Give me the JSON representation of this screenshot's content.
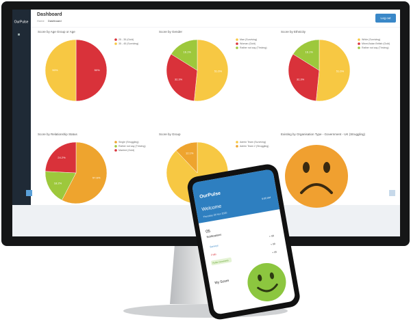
{
  "app": {
    "logo": "OurPulse",
    "title": "Dashboard",
    "breadcrumb": [
      "Home",
      "Dashboard"
    ],
    "logout": "Log out"
  },
  "panels": [
    {
      "title": "Score by Age Group or Age",
      "legend": [
        {
          "label": "25 - 35 (Gold)",
          "color": "#d9323a"
        },
        {
          "label": "35 - 45 (Surviving)",
          "color": "#f7c843"
        }
      ],
      "values": [
        50,
        50
      ],
      "value_labels": [
        "50%",
        "50%"
      ],
      "colors": [
        "#d9323a",
        "#f7c843"
      ]
    },
    {
      "title": "Score by Gender",
      "legend": [
        {
          "label": "Man (Surviving)",
          "color": "#f7c843"
        },
        {
          "label": "Woman (Gold)",
          "color": "#d9323a"
        },
        {
          "label": "Rather not say (Thriving)",
          "color": "#9dc83c"
        }
      ],
      "values": [
        51.6,
        32.3,
        16.1
      ],
      "value_labels": [
        "51.6%",
        "32.3%",
        "16.1%"
      ],
      "colors": [
        "#f7c843",
        "#d9323a",
        "#9dc83c"
      ]
    },
    {
      "title": "Score by Ethnicity",
      "legend": [
        {
          "label": "White (Surviving)",
          "color": "#f7c843"
        },
        {
          "label": "Mixed Asian British (Gold)",
          "color": "#d9323a"
        },
        {
          "label": "Rather not say (Thriving)",
          "color": "#9dc83c"
        }
      ],
      "values": [
        51.6,
        32.3,
        16.1
      ],
      "value_labels": [
        "51.6%",
        "32.3%",
        "16.1%"
      ],
      "colors": [
        "#f7c843",
        "#d9323a",
        "#9dc83c"
      ]
    },
    {
      "title": "Score by Relationship Status",
      "legend": [
        {
          "label": "Single (Struggling)",
          "color": "#eea42e"
        },
        {
          "label": "Rather not say (Thriving)",
          "color": "#9dc83c"
        },
        {
          "label": "Married (Gold)",
          "color": "#d9323a"
        }
      ],
      "values": [
        57.6,
        18.2,
        24.2
      ],
      "value_labels": [
        "57.6%",
        "18.2%",
        "24.2%"
      ],
      "colors": [
        "#eea42e",
        "#9dc83c",
        "#d9323a"
      ]
    },
    {
      "title": "Score by Group",
      "legend": [
        {
          "label": "Admin Team (Surviving)",
          "color": "#f7c843"
        },
        {
          "label": "Admin Team 2 (Struggling)",
          "color": "#eea42e"
        }
      ],
      "values": [
        87.9,
        12.1
      ],
      "value_labels": [
        "87.9%",
        "12.1%"
      ],
      "colors": [
        "#f7c843",
        "#eea42e"
      ]
    }
  ],
  "status_panel": {
    "title": "Existing by Organisation Type - Government - UK (Struggling)"
  },
  "phone": {
    "logo": "OurPulse",
    "welcome": "Welcome",
    "time": "9:00 AM",
    "date": "Thursday 26 Nov 2020",
    "notifications_count": "05",
    "notifications": "Notifications",
    "items": [
      {
        "label": "Surveys",
        "count": "+ 08"
      },
      {
        "label": "Polls",
        "count": "+ 09"
      },
      {
        "label": "Public Comments",
        "count": "+ 05"
      }
    ],
    "score_label": "My Score"
  }
}
